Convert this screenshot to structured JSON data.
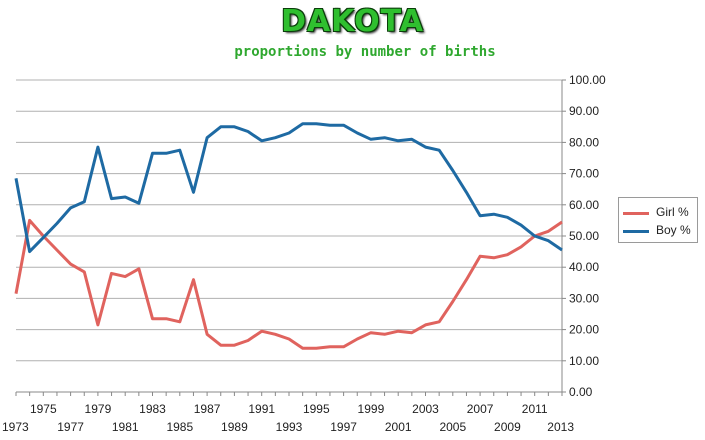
{
  "title": "DAKOTA",
  "subtitle": "proportions by number of births",
  "colors": {
    "girl": "#e0635e",
    "boy": "#1e6aa3",
    "grid": "#b0b0b0",
    "title": "#2fbf2f"
  },
  "chart_data": {
    "type": "line",
    "title": "DAKOTA",
    "subtitle": "proportions by number of births",
    "x": [
      1973,
      1974,
      1975,
      1976,
      1977,
      1978,
      1979,
      1980,
      1981,
      1982,
      1983,
      1984,
      1985,
      1986,
      1987,
      1988,
      1989,
      1990,
      1991,
      1992,
      1993,
      1994,
      1995,
      1996,
      1997,
      1998,
      1999,
      2000,
      2001,
      2002,
      2003,
      2004,
      2005,
      2006,
      2007,
      2008,
      2009,
      2010,
      2011,
      2012,
      2013
    ],
    "x_odd_ticks": [
      "1973",
      "1977",
      "1981",
      "1985",
      "1989",
      "1993",
      "1997",
      "2001",
      "2005",
      "2009",
      "2013"
    ],
    "x_even_ticks": [
      "1975",
      "1979",
      "1983",
      "1987",
      "1991",
      "1995",
      "1999",
      "2003",
      "2007",
      "2011"
    ],
    "y_ticks": [
      "0.00",
      "10.00",
      "20.00",
      "30.00",
      "40.00",
      "50.00",
      "60.00",
      "70.00",
      "80.00",
      "90.00",
      "100.00"
    ],
    "ylim": [
      0,
      100
    ],
    "y_axis_side": "right",
    "grid": true,
    "legend_position": "right",
    "series": [
      {
        "name": "Girl %",
        "color": "#e0635e",
        "values": [
          31.5,
          55,
          50,
          45.5,
          41,
          38.5,
          21.5,
          38,
          37,
          39.5,
          23.5,
          23.5,
          22.5,
          36,
          18.5,
          15,
          15,
          16.5,
          19.5,
          18.5,
          17,
          14,
          14,
          14.5,
          14.5,
          17,
          19,
          18.5,
          19.5,
          19,
          21.5,
          22.5,
          29,
          36,
          43.5,
          43,
          44,
          46.5,
          50,
          51.5,
          54.5
        ]
      },
      {
        "name": "Boy %",
        "color": "#1e6aa3",
        "values": [
          68.5,
          45,
          49.5,
          54,
          59,
          61,
          78.5,
          62,
          62.5,
          60.5,
          76.5,
          76.5,
          77.5,
          64,
          81.5,
          85,
          85,
          83.5,
          80.5,
          81.5,
          83,
          86,
          86,
          85.5,
          85.5,
          83,
          81,
          81.5,
          80.5,
          81,
          78.5,
          77.5,
          71,
          64,
          56.5,
          57,
          56,
          53.5,
          50,
          48.5,
          45.5
        ]
      }
    ]
  }
}
